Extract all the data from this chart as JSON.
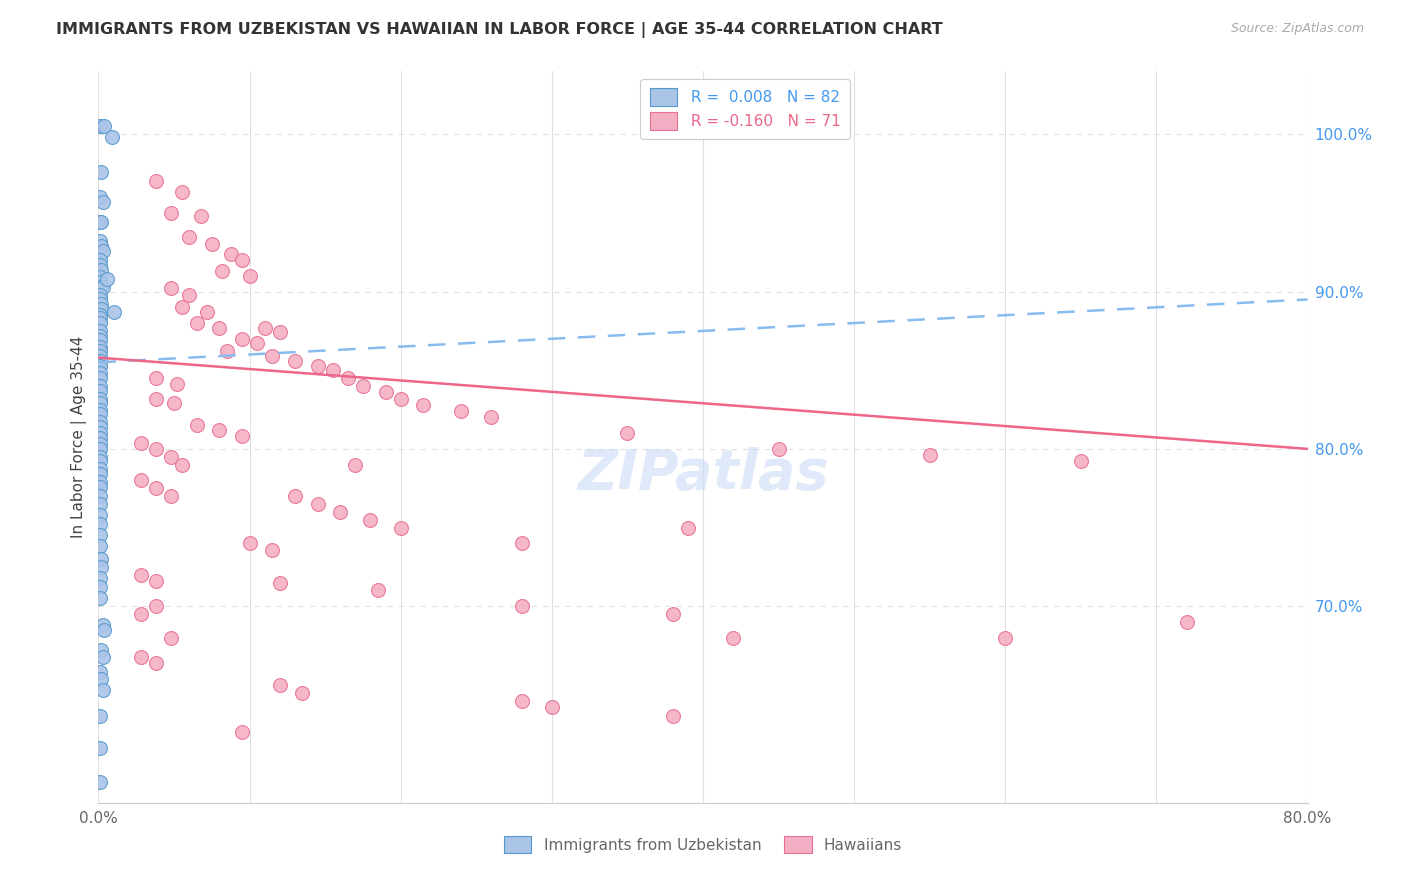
{
  "title": "IMMIGRANTS FROM UZBEKISTAN VS HAWAIIAN IN LABOR FORCE | AGE 35-44 CORRELATION CHART",
  "source": "Source: ZipAtlas.com",
  "ylabel": "In Labor Force | Age 35-44",
  "xlim": [
    0.0,
    0.8
  ],
  "ylim": [
    0.575,
    1.04
  ],
  "uzbek_color": "#aac4e8",
  "hawaii_color": "#f5afc4",
  "uzbek_edge_color": "#5599cc",
  "hawaii_edge_color": "#e87090",
  "uzbek_line_color": "#88bbee",
  "hawaii_line_color": "#ee6688",
  "uzbek_trendline": [
    0.0,
    0.855,
    0.8,
    0.895
  ],
  "hawaii_trendline": [
    0.0,
    0.858,
    0.8,
    0.8
  ],
  "uzbek_points": [
    [
      0.001,
      1.005
    ],
    [
      0.004,
      1.005
    ],
    [
      0.009,
      0.998
    ],
    [
      0.002,
      0.976
    ],
    [
      0.001,
      0.96
    ],
    [
      0.003,
      0.957
    ],
    [
      0.001,
      0.944
    ],
    [
      0.002,
      0.944
    ],
    [
      0.001,
      0.932
    ],
    [
      0.002,
      0.929
    ],
    [
      0.003,
      0.926
    ],
    [
      0.001,
      0.92
    ],
    [
      0.001,
      0.917
    ],
    [
      0.002,
      0.914
    ],
    [
      0.001,
      0.909
    ],
    [
      0.001,
      0.906
    ],
    [
      0.002,
      0.903
    ],
    [
      0.003,
      0.903
    ],
    [
      0.001,
      0.898
    ],
    [
      0.001,
      0.895
    ],
    [
      0.002,
      0.892
    ],
    [
      0.002,
      0.889
    ],
    [
      0.001,
      0.885
    ],
    [
      0.001,
      0.883
    ],
    [
      0.001,
      0.88
    ],
    [
      0.001,
      0.875
    ],
    [
      0.001,
      0.872
    ],
    [
      0.001,
      0.869
    ],
    [
      0.001,
      0.865
    ],
    [
      0.001,
      0.862
    ],
    [
      0.001,
      0.859
    ],
    [
      0.001,
      0.856
    ],
    [
      0.001,
      0.853
    ],
    [
      0.001,
      0.848
    ],
    [
      0.001,
      0.845
    ],
    [
      0.001,
      0.84
    ],
    [
      0.001,
      0.837
    ],
    [
      0.001,
      0.832
    ],
    [
      0.001,
      0.829
    ],
    [
      0.001,
      0.825
    ],
    [
      0.001,
      0.822
    ],
    [
      0.001,
      0.817
    ],
    [
      0.001,
      0.814
    ],
    [
      0.001,
      0.81
    ],
    [
      0.001,
      0.807
    ],
    [
      0.001,
      0.803
    ],
    [
      0.001,
      0.8
    ],
    [
      0.001,
      0.795
    ],
    [
      0.001,
      0.792
    ],
    [
      0.001,
      0.787
    ],
    [
      0.001,
      0.784
    ],
    [
      0.001,
      0.779
    ],
    [
      0.001,
      0.776
    ],
    [
      0.001,
      0.77
    ],
    [
      0.001,
      0.765
    ],
    [
      0.001,
      0.758
    ],
    [
      0.001,
      0.752
    ],
    [
      0.001,
      0.745
    ],
    [
      0.001,
      0.738
    ],
    [
      0.002,
      0.73
    ],
    [
      0.002,
      0.725
    ],
    [
      0.001,
      0.718
    ],
    [
      0.001,
      0.712
    ],
    [
      0.001,
      0.705
    ],
    [
      0.003,
      0.688
    ],
    [
      0.004,
      0.685
    ],
    [
      0.002,
      0.672
    ],
    [
      0.003,
      0.668
    ],
    [
      0.001,
      0.658
    ],
    [
      0.002,
      0.654
    ],
    [
      0.003,
      0.647
    ],
    [
      0.001,
      0.63
    ],
    [
      0.001,
      0.61
    ],
    [
      0.001,
      0.588
    ],
    [
      0.006,
      0.908
    ],
    [
      0.01,
      0.887
    ]
  ],
  "hawaii_points": [
    [
      0.038,
      0.97
    ],
    [
      0.055,
      0.963
    ],
    [
      0.048,
      0.95
    ],
    [
      0.068,
      0.948
    ],
    [
      0.06,
      0.935
    ],
    [
      0.075,
      0.93
    ],
    [
      0.088,
      0.924
    ],
    [
      0.095,
      0.92
    ],
    [
      0.082,
      0.913
    ],
    [
      0.1,
      0.91
    ],
    [
      0.048,
      0.902
    ],
    [
      0.06,
      0.898
    ],
    [
      0.055,
      0.89
    ],
    [
      0.072,
      0.887
    ],
    [
      0.065,
      0.88
    ],
    [
      0.08,
      0.877
    ],
    [
      0.11,
      0.877
    ],
    [
      0.12,
      0.874
    ],
    [
      0.095,
      0.87
    ],
    [
      0.105,
      0.867
    ],
    [
      0.085,
      0.862
    ],
    [
      0.115,
      0.859
    ],
    [
      0.13,
      0.856
    ],
    [
      0.145,
      0.853
    ],
    [
      0.155,
      0.85
    ],
    [
      0.038,
      0.845
    ],
    [
      0.052,
      0.841
    ],
    [
      0.165,
      0.845
    ],
    [
      0.175,
      0.84
    ],
    [
      0.19,
      0.836
    ],
    [
      0.038,
      0.832
    ],
    [
      0.05,
      0.829
    ],
    [
      0.2,
      0.832
    ],
    [
      0.215,
      0.828
    ],
    [
      0.24,
      0.824
    ],
    [
      0.26,
      0.82
    ],
    [
      0.065,
      0.815
    ],
    [
      0.08,
      0.812
    ],
    [
      0.095,
      0.808
    ],
    [
      0.028,
      0.804
    ],
    [
      0.038,
      0.8
    ],
    [
      0.048,
      0.795
    ],
    [
      0.055,
      0.79
    ],
    [
      0.17,
      0.79
    ],
    [
      0.35,
      0.81
    ],
    [
      0.45,
      0.8
    ],
    [
      0.55,
      0.796
    ],
    [
      0.65,
      0.792
    ],
    [
      0.028,
      0.78
    ],
    [
      0.038,
      0.775
    ],
    [
      0.048,
      0.77
    ],
    [
      0.13,
      0.77
    ],
    [
      0.145,
      0.765
    ],
    [
      0.16,
      0.76
    ],
    [
      0.18,
      0.755
    ],
    [
      0.2,
      0.75
    ],
    [
      0.1,
      0.74
    ],
    [
      0.115,
      0.736
    ],
    [
      0.28,
      0.74
    ],
    [
      0.39,
      0.75
    ],
    [
      0.028,
      0.72
    ],
    [
      0.038,
      0.716
    ],
    [
      0.12,
      0.715
    ],
    [
      0.185,
      0.71
    ],
    [
      0.038,
      0.7
    ],
    [
      0.028,
      0.695
    ],
    [
      0.28,
      0.7
    ],
    [
      0.38,
      0.695
    ],
    [
      0.048,
      0.68
    ],
    [
      0.028,
      0.668
    ],
    [
      0.038,
      0.664
    ],
    [
      0.12,
      0.65
    ],
    [
      0.135,
      0.645
    ],
    [
      0.72,
      0.69
    ],
    [
      0.6,
      0.68
    ],
    [
      0.42,
      0.68
    ],
    [
      0.28,
      0.64
    ],
    [
      0.3,
      0.636
    ],
    [
      0.38,
      0.63
    ],
    [
      0.095,
      0.62
    ]
  ],
  "watermark": "ZIPatlas",
  "background_color": "#ffffff",
  "grid_color": "#e0e0e0"
}
